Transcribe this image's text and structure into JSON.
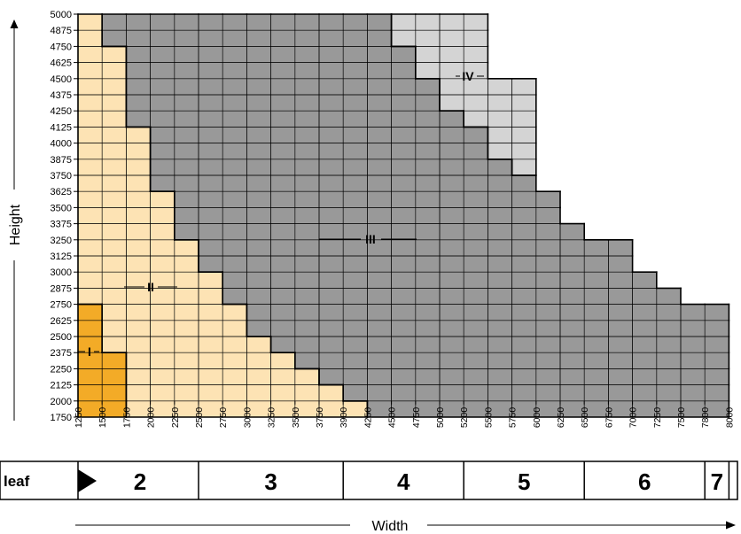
{
  "axes": {
    "x_title": "Width",
    "y_title": "Height",
    "x_ticks": [
      "1250",
      "1500",
      "1750",
      "2000",
      "2250",
      "2500",
      "2750",
      "3000",
      "3250",
      "3500",
      "3750",
      "3900",
      "4250",
      "4500",
      "4750",
      "5000",
      "5200",
      "5500",
      "5750",
      "6000",
      "6250",
      "6500",
      "6750",
      "7000",
      "7250",
      "7500",
      "7800",
      "8000"
    ],
    "y_ticks": [
      "5000",
      "4875",
      "4750",
      "4625",
      "4500",
      "4375",
      "4250",
      "4125",
      "4000",
      "3875",
      "3750",
      "3625",
      "3500",
      "3375",
      "3250",
      "3125",
      "3000",
      "2875",
      "2750",
      "2625",
      "2500",
      "2375",
      "2250",
      "2125",
      "2000",
      "1750"
    ]
  },
  "zones": {
    "labels": [
      {
        "id": "I",
        "text": "I"
      },
      {
        "id": "II",
        "text": "II"
      },
      {
        "id": "III",
        "text": "III"
      },
      {
        "id": "IV",
        "text": "IV"
      }
    ],
    "colors": {
      "I": "#f3ab27",
      "II": "#fde3b4",
      "III": "#999999",
      "IV": "#d4d4d4"
    },
    "zone_I_top_per_column": [
      2750,
      2375,
      null
    ],
    "zone_II_top_per_column": [
      5000,
      4750,
      4125,
      3625,
      3250,
      3000,
      2750,
      2500,
      2375,
      2250,
      2125,
      2000
    ],
    "zone_III_top_per_column": [
      null,
      5000,
      5000,
      5000,
      5000,
      5000,
      5000,
      5000,
      5000,
      5000,
      5000,
      5000,
      5000,
      4750,
      4500,
      4250,
      4125,
      3875,
      3750,
      3625,
      3375,
      3250,
      3250,
      3000,
      2875,
      2750,
      2750
    ],
    "zone_IV_columns": [
      {
        "col": 13,
        "top": 5000,
        "bottom": 4750
      },
      {
        "col": 14,
        "top": 5000,
        "bottom": 4500
      },
      {
        "col": 15,
        "top": 5000,
        "bottom": 4250
      },
      {
        "col": 16,
        "top": 5000,
        "bottom": 4125
      },
      {
        "col": 17,
        "top": 4500,
        "bottom": 3875
      },
      {
        "col": 18,
        "top": 4500,
        "bottom": 3750
      }
    ]
  },
  "leaf_bar": {
    "label": "leaf",
    "pointer_icon": "triangle-right-icon",
    "segments": [
      {
        "text": "2",
        "from": "1250",
        "to": "2500"
      },
      {
        "text": "3",
        "from": "2500",
        "to": "3900"
      },
      {
        "text": "4",
        "from": "3900",
        "to": "5200"
      },
      {
        "text": "5",
        "from": "5200",
        "to": "6500"
      },
      {
        "text": "6",
        "from": "6500",
        "to": "7800"
      },
      {
        "text": "7",
        "from": "7800",
        "to": "8000"
      }
    ]
  }
}
